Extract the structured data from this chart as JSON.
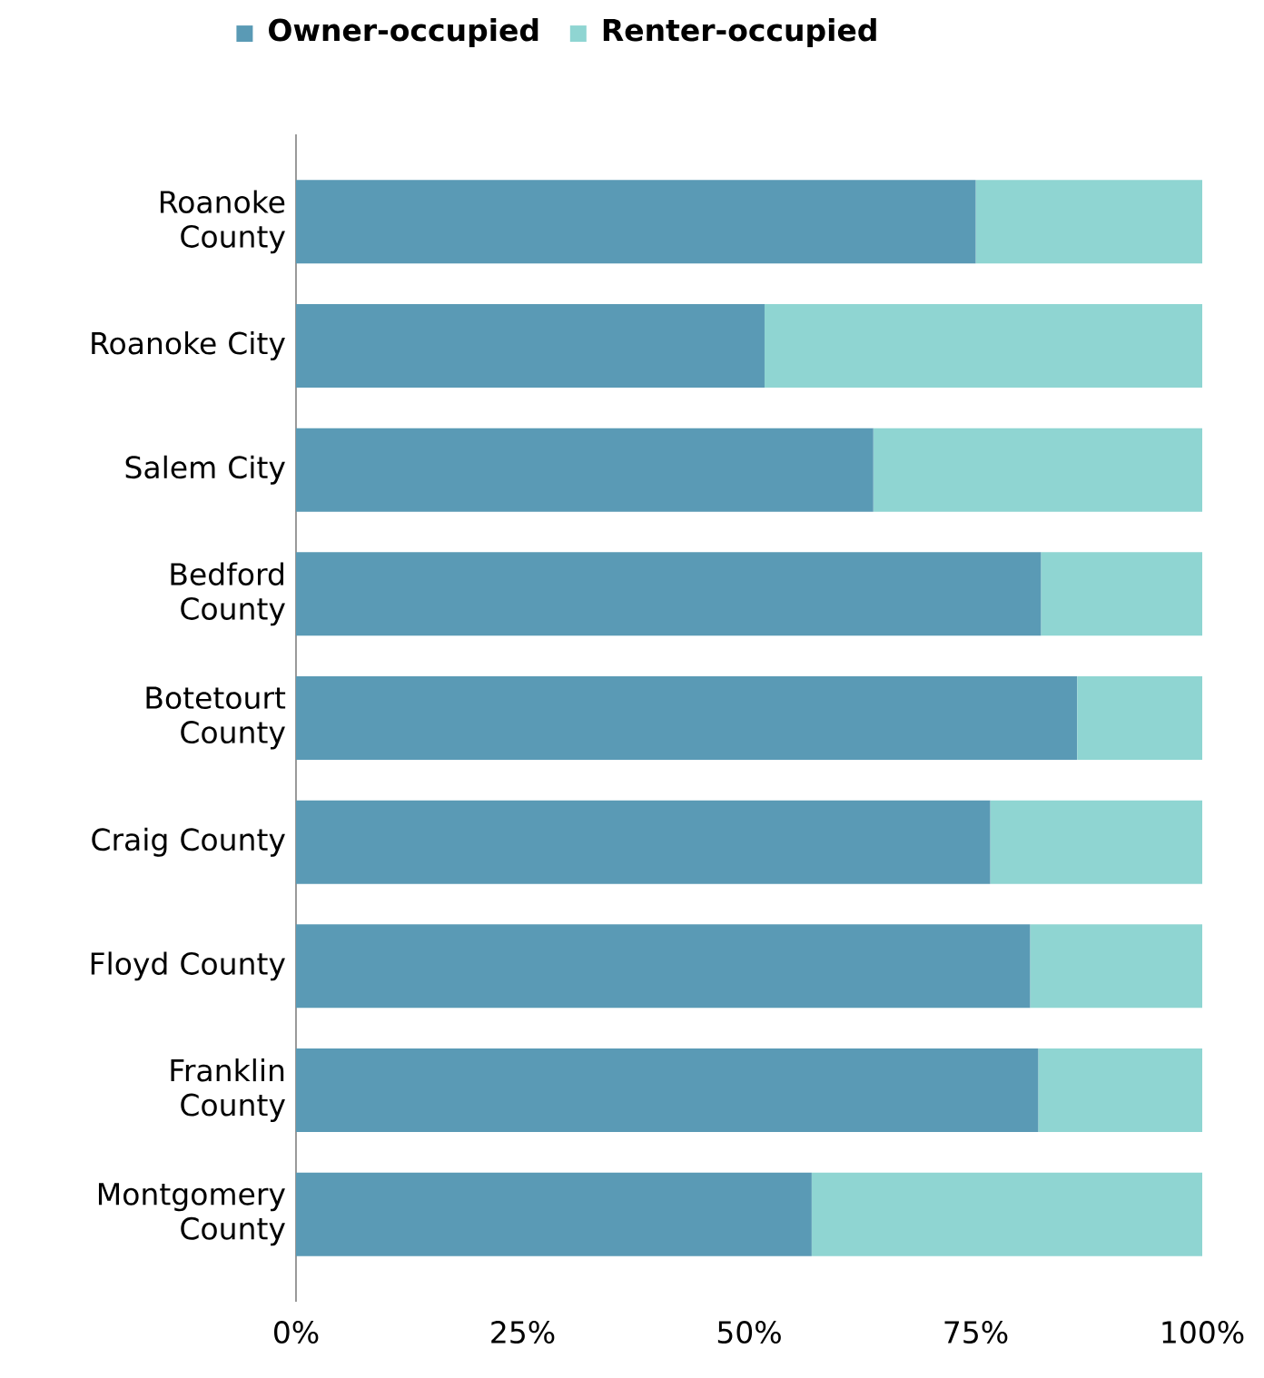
{
  "chart_data": {
    "type": "bar",
    "orientation": "horizontal",
    "stacked": true,
    "categories": [
      "Roanoke County",
      "Roanoke City",
      "Salem City",
      "Bedford County",
      "Botetourt County",
      "Craig County",
      "Floyd County",
      "Franklin County",
      "Montgomery County"
    ],
    "series": [
      {
        "name": "Owner-occupied",
        "color": "#5a9ab5",
        "values": [
          75.0,
          51.7,
          63.7,
          82.2,
          86.2,
          76.6,
          81.0,
          81.9,
          56.9
        ]
      },
      {
        "name": "Renter-occupied",
        "color": "#8fd5d2",
        "values": [
          25.0,
          48.3,
          36.3,
          17.8,
          13.8,
          23.4,
          19.0,
          18.1,
          43.1
        ]
      }
    ],
    "xlim": [
      0,
      100
    ],
    "xticks": [
      {
        "value": 0,
        "label": "0%"
      },
      {
        "value": 25,
        "label": "25%"
      },
      {
        "value": 50,
        "label": "50%"
      },
      {
        "value": 75,
        "label": "75%"
      },
      {
        "value": 100,
        "label": "100%"
      }
    ],
    "grid": false,
    "legend": "top"
  }
}
